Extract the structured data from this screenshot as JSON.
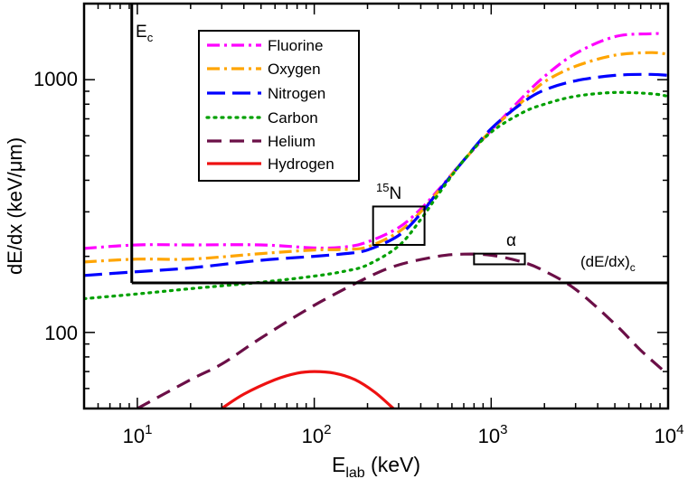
{
  "chart_data": {
    "type": "line",
    "xscale": "log",
    "yscale": "log",
    "xlim": [
      5,
      10000
    ],
    "ylim": [
      50,
      2000
    ],
    "grid": false,
    "legend_position": "top-left-inside",
    "x_tick_labels": [
      {
        "value": 10,
        "base": "10",
        "exp": "1"
      },
      {
        "value": 100,
        "base": "10",
        "exp": "2"
      },
      {
        "value": 1000,
        "base": "10",
        "exp": "3"
      },
      {
        "value": 10000,
        "base": "10",
        "exp": "4"
      }
    ],
    "y_tick_labels": [
      {
        "value": 100,
        "label": "100"
      },
      {
        "value": 1000,
        "label": "1000"
      }
    ],
    "xlabel": {
      "main": "E",
      "sub": "lab",
      "rest": " (keV)"
    },
    "ylabel": "dE/dx (keV/μm)",
    "series": [
      {
        "name": "Fluorine",
        "color": "#ff00ff",
        "dash": "dashdot",
        "x": [
          5,
          10,
          20,
          50,
          100,
          150,
          200,
          300,
          400,
          500,
          700,
          1000,
          1500,
          2000,
          3000,
          5000,
          8000,
          9000
        ],
        "y": [
          215,
          222,
          222,
          222,
          216,
          218,
          228,
          260,
          308,
          365,
          480,
          630,
          850,
          1030,
          1270,
          1480,
          1520,
          1520
        ]
      },
      {
        "name": "Oxygen",
        "color": "#ffa500",
        "dash": "dashdot",
        "x": [
          5,
          10,
          20,
          50,
          100,
          150,
          200,
          300,
          400,
          500,
          700,
          1000,
          1500,
          2000,
          3000,
          5000,
          8000,
          10000
        ],
        "y": [
          190,
          195,
          195,
          205,
          212,
          213,
          218,
          250,
          300,
          360,
          480,
          630,
          820,
          980,
          1130,
          1250,
          1280,
          1260
        ]
      },
      {
        "name": "Nitrogen",
        "color": "#0000ff",
        "dash": "long",
        "x": [
          5,
          10,
          20,
          50,
          100,
          150,
          200,
          300,
          400,
          500,
          700,
          1000,
          1500,
          2000,
          3000,
          5000,
          8000,
          10000
        ],
        "y": [
          168,
          174,
          180,
          193,
          200,
          205,
          212,
          242,
          295,
          360,
          480,
          640,
          810,
          910,
          990,
          1040,
          1050,
          1040
        ]
      },
      {
        "name": "Carbon",
        "color": "#00a000",
        "dash": "dot",
        "x": [
          5,
          10,
          20,
          50,
          100,
          150,
          200,
          300,
          400,
          500,
          700,
          1000,
          1500,
          2000,
          3000,
          5000,
          8000,
          10000
        ],
        "y": [
          136,
          142,
          149,
          158,
          167,
          175,
          185,
          220,
          280,
          350,
          480,
          620,
          740,
          800,
          860,
          890,
          880,
          860
        ]
      },
      {
        "name": "Helium",
        "color": "#6b0f47",
        "dash": "dash",
        "x": [
          10,
          20,
          30,
          50,
          100,
          200,
          300,
          500,
          700,
          1000,
          1500,
          2000,
          3000,
          5000,
          7000,
          10000
        ],
        "y": [
          50,
          65,
          75,
          95,
          128,
          165,
          185,
          200,
          204,
          202,
          190,
          175,
          148,
          108,
          85,
          68
        ]
      },
      {
        "name": "Hydrogen",
        "color": "#ee1111",
        "dash": "solid",
        "x": [
          30,
          40,
          60,
          80,
          100,
          130,
          170,
          220,
          280
        ],
        "y": [
          50,
          57,
          65,
          69,
          70,
          69,
          65,
          58,
          50
        ]
      }
    ],
    "annotations": {
      "Ec": {
        "main": "E",
        "sub": "c",
        "x": 9.3
      },
      "dEdx_c": {
        "main": "(dE/dx)",
        "sub": "c",
        "y": 157
      },
      "N15": {
        "sup": "15",
        "main": "N",
        "box_x": [
          215,
          420
        ],
        "box_y": [
          222,
          315
        ]
      },
      "alpha": {
        "label": "α",
        "box_x": [
          800,
          1550
        ],
        "box_y": [
          186,
          205
        ]
      }
    }
  }
}
